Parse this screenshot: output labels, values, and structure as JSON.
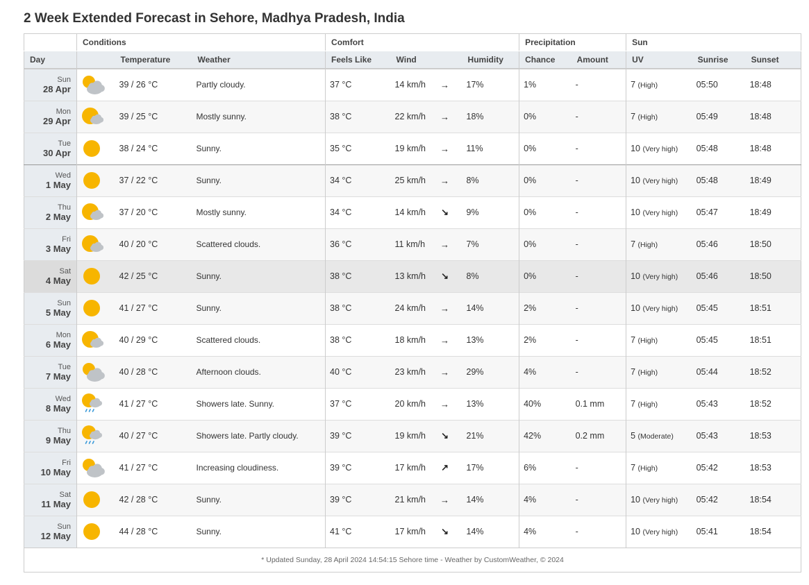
{
  "title": "2 Week Extended Forecast in Sehore, Madhya Pradesh, India",
  "groups": {
    "conditions": "Conditions",
    "comfort": "Comfort",
    "precipitation": "Precipitation",
    "sun": "Sun"
  },
  "columns": {
    "day": "Day",
    "temperature": "Temperature",
    "weather": "Weather",
    "feels_like": "Feels Like",
    "wind": "Wind",
    "humidity": "Humidity",
    "chance": "Chance",
    "amount": "Amount",
    "uv": "UV",
    "sunrise": "Sunrise",
    "sunset": "Sunset"
  },
  "rows": [
    {
      "dow": "Sun",
      "date": "28 Apr",
      "icon": "partly-cloudy-icon",
      "temp": "39 / 26 °C",
      "weather": "Partly cloudy.",
      "feels": "37 °C",
      "wind": "14 km/h",
      "arrow": "→",
      "humidity": "17%",
      "chance": "1%",
      "amount": "-",
      "uv": "7",
      "uv_label": "(High)",
      "sunrise": "05:50",
      "sunset": "18:48"
    },
    {
      "dow": "Mon",
      "date": "29 Apr",
      "icon": "mostly-sunny-icon",
      "temp": "39 / 25 °C",
      "weather": "Mostly sunny.",
      "feels": "38 °C",
      "wind": "22 km/h",
      "arrow": "→",
      "humidity": "18%",
      "chance": "0%",
      "amount": "-",
      "uv": "7",
      "uv_label": "(High)",
      "sunrise": "05:49",
      "sunset": "18:48"
    },
    {
      "dow": "Tue",
      "date": "30 Apr",
      "icon": "sunny-icon",
      "temp": "38 / 24 °C",
      "weather": "Sunny.",
      "feels": "35 °C",
      "wind": "19 km/h",
      "arrow": "→",
      "humidity": "11%",
      "chance": "0%",
      "amount": "-",
      "uv": "10",
      "uv_label": "(Very high)",
      "sunrise": "05:48",
      "sunset": "18:48"
    },
    {
      "dow": "Wed",
      "date": "1 May",
      "icon": "sunny-icon",
      "temp": "37 / 22 °C",
      "weather": "Sunny.",
      "feels": "34 °C",
      "wind": "25 km/h",
      "arrow": "→",
      "humidity": "8%",
      "chance": "0%",
      "amount": "-",
      "uv": "10",
      "uv_label": "(Very high)",
      "sunrise": "05:48",
      "sunset": "18:49"
    },
    {
      "dow": "Thu",
      "date": "2 May",
      "icon": "mostly-sunny-icon",
      "temp": "37 / 20 °C",
      "weather": "Mostly sunny.",
      "feels": "34 °C",
      "wind": "14 km/h",
      "arrow": "↘",
      "humidity": "9%",
      "chance": "0%",
      "amount": "-",
      "uv": "10",
      "uv_label": "(Very high)",
      "sunrise": "05:47",
      "sunset": "18:49"
    },
    {
      "dow": "Fri",
      "date": "3 May",
      "icon": "mostly-sunny-icon",
      "temp": "40 / 20 °C",
      "weather": "Scattered clouds.",
      "feels": "36 °C",
      "wind": "11 km/h",
      "arrow": "→",
      "humidity": "7%",
      "chance": "0%",
      "amount": "-",
      "uv": "7",
      "uv_label": "(High)",
      "sunrise": "05:46",
      "sunset": "18:50"
    },
    {
      "dow": "Sat",
      "date": "4 May",
      "icon": "sunny-icon",
      "temp": "42 / 25 °C",
      "weather": "Sunny.",
      "feels": "38 °C",
      "wind": "13 km/h",
      "arrow": "↘",
      "humidity": "8%",
      "chance": "0%",
      "amount": "-",
      "uv": "10",
      "uv_label": "(Very high)",
      "sunrise": "05:46",
      "sunset": "18:50"
    },
    {
      "dow": "Sun",
      "date": "5 May",
      "icon": "sunny-icon",
      "temp": "41 / 27 °C",
      "weather": "Sunny.",
      "feels": "38 °C",
      "wind": "24 km/h",
      "arrow": "→",
      "humidity": "14%",
      "chance": "2%",
      "amount": "-",
      "uv": "10",
      "uv_label": "(Very high)",
      "sunrise": "05:45",
      "sunset": "18:51"
    },
    {
      "dow": "Mon",
      "date": "6 May",
      "icon": "mostly-sunny-icon",
      "temp": "40 / 29 °C",
      "weather": "Scattered clouds.",
      "feels": "38 °C",
      "wind": "18 km/h",
      "arrow": "→",
      "humidity": "13%",
      "chance": "2%",
      "amount": "-",
      "uv": "7",
      "uv_label": "(High)",
      "sunrise": "05:45",
      "sunset": "18:51"
    },
    {
      "dow": "Tue",
      "date": "7 May",
      "icon": "partly-cloudy-icon",
      "temp": "40 / 28 °C",
      "weather": "Afternoon clouds.",
      "feels": "40 °C",
      "wind": "23 km/h",
      "arrow": "→",
      "humidity": "29%",
      "chance": "4%",
      "amount": "-",
      "uv": "7",
      "uv_label": "(High)",
      "sunrise": "05:44",
      "sunset": "18:52"
    },
    {
      "dow": "Wed",
      "date": "8 May",
      "icon": "showers-icon",
      "temp": "41 / 27 °C",
      "weather": "Showers late. Sunny.",
      "feels": "37 °C",
      "wind": "20 km/h",
      "arrow": "→",
      "humidity": "13%",
      "chance": "40%",
      "amount": "0.1 mm",
      "uv": "7",
      "uv_label": "(High)",
      "sunrise": "05:43",
      "sunset": "18:52"
    },
    {
      "dow": "Thu",
      "date": "9 May",
      "icon": "showers-icon",
      "temp": "40 / 27 °C",
      "weather": "Showers late. Partly cloudy.",
      "feels": "39 °C",
      "wind": "19 km/h",
      "arrow": "↘",
      "humidity": "21%",
      "chance": "42%",
      "amount": "0.2 mm",
      "uv": "5",
      "uv_label": "(Moderate)",
      "sunrise": "05:43",
      "sunset": "18:53"
    },
    {
      "dow": "Fri",
      "date": "10 May",
      "icon": "partly-cloudy-icon",
      "temp": "41 / 27 °C",
      "weather": "Increasing cloudiness.",
      "feels": "39 °C",
      "wind": "17 km/h",
      "arrow": "↗",
      "humidity": "17%",
      "chance": "6%",
      "amount": "-",
      "uv": "7",
      "uv_label": "(High)",
      "sunrise": "05:42",
      "sunset": "18:53"
    },
    {
      "dow": "Sat",
      "date": "11 May",
      "icon": "sunny-icon",
      "temp": "42 / 28 °C",
      "weather": "Sunny.",
      "feels": "39 °C",
      "wind": "21 km/h",
      "arrow": "→",
      "humidity": "14%",
      "chance": "4%",
      "amount": "-",
      "uv": "10",
      "uv_label": "(Very high)",
      "sunrise": "05:42",
      "sunset": "18:54"
    },
    {
      "dow": "Sun",
      "date": "12 May",
      "icon": "sunny-icon",
      "temp": "44 / 28 °C",
      "weather": "Sunny.",
      "feels": "41 °C",
      "wind": "17 km/h",
      "arrow": "↘",
      "humidity": "14%",
      "chance": "4%",
      "amount": "-",
      "uv": "10",
      "uv_label": "(Very high)",
      "sunrise": "05:41",
      "sunset": "18:54"
    }
  ],
  "footer": "* Updated Sunday, 28 April 2024 14:54:15 Sehore time - Weather by CustomWeather, © 2024",
  "colors": {
    "sun": "#f7b500",
    "cloud": "#bfc3c7",
    "rain": "#3b9ad9",
    "header_bg": "#e8ecf0"
  }
}
